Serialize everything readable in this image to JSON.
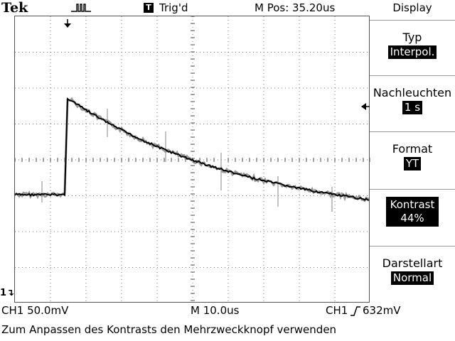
{
  "header": {
    "brand": "Tek",
    "trigger_box": "T",
    "trigger_status": "Trig'd",
    "horizontal_position": "M Pos: 35.20us"
  },
  "menu": {
    "title": "Display",
    "items": [
      {
        "label": "Typ",
        "value": "Interpol."
      },
      {
        "label": "Nachleuchten",
        "value": "1 s"
      },
      {
        "label": "Format",
        "value": "YT"
      },
      {
        "label": "Kontrast",
        "value": "44%"
      },
      {
        "label": "Darstellart",
        "value": "Normal"
      }
    ]
  },
  "channel_ref": "1",
  "status_bar": {
    "ch1_scale": "CH1  50.0mV",
    "timebase": "M 10.0us",
    "trigger_source": "CH1",
    "trigger_slope_icon": "rising-edge-icon",
    "trigger_level": "632mV"
  },
  "message": "Zum Anpassen des Kontrasts den Mehrzweckknopf verwenden",
  "colors": {
    "trace": "#000000",
    "persistence": "#999999",
    "background": "#ffffff"
  }
}
